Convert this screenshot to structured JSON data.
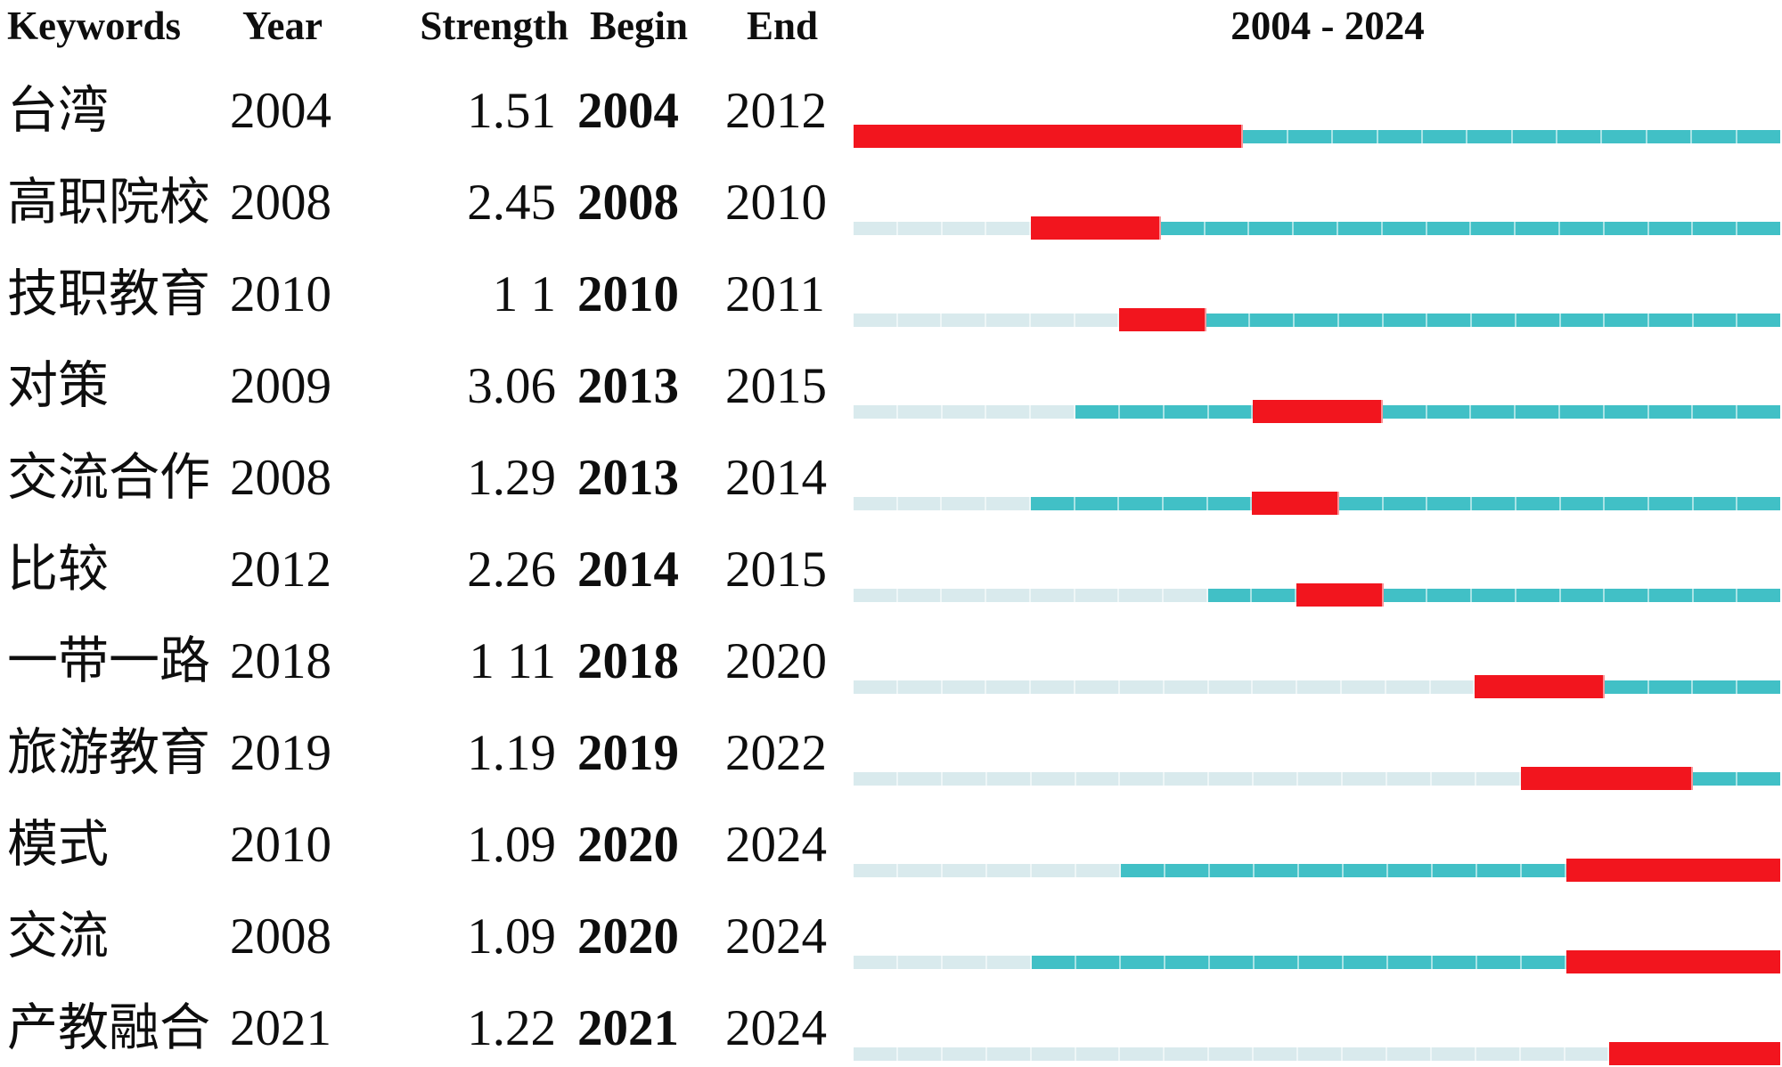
{
  "header": {
    "keywords": "Keywords",
    "year": "Year",
    "strength": "Strength",
    "begin": "Begin",
    "end": "End",
    "range": "2004 - 2024"
  },
  "timeline": {
    "start_year": 2004,
    "end_year": 2024
  },
  "colors": {
    "burst": "#f2151e",
    "active": "#41c0c6",
    "pre": "#d9eaed",
    "divider": "rgba(255,255,255,0.55)",
    "text": "#0e0e0e"
  },
  "chart_data": {
    "type": "table",
    "title": "2004 - 2024",
    "columns": [
      "Keywords",
      "Year",
      "Strength",
      "Begin",
      "End"
    ],
    "timeline_range": [
      2004,
      2024
    ],
    "legend": {
      "burst_segment": "red: burst period (Begin–End)",
      "active_segment": "teal: keyword present",
      "pre_segment": "light: before first appearance"
    },
    "rows": [
      {
        "keyword": "台湾",
        "year": 2004,
        "strength": "1.51",
        "begin": 2004,
        "end": 2012
      },
      {
        "keyword": "高职院校",
        "year": 2008,
        "strength": "2.45",
        "begin": 2008,
        "end": 2010
      },
      {
        "keyword": "技职教育",
        "year": 2010,
        "strength": "1 1",
        "begin": 2010,
        "end": 2011
      },
      {
        "keyword": "对策",
        "year": 2009,
        "strength": "3.06",
        "begin": 2013,
        "end": 2015
      },
      {
        "keyword": "交流合作",
        "year": 2008,
        "strength": "1.29",
        "begin": 2013,
        "end": 2014
      },
      {
        "keyword": "比较",
        "year": 2012,
        "strength": "2.26",
        "begin": 2014,
        "end": 2015
      },
      {
        "keyword": "一带一路",
        "year": 2018,
        "strength": "1 11",
        "begin": 2018,
        "end": 2020
      },
      {
        "keyword": "旅游教育",
        "year": 2019,
        "strength": "1.19",
        "begin": 2019,
        "end": 2022
      },
      {
        "keyword": "模式",
        "year": 2010,
        "strength": "1.09",
        "begin": 2020,
        "end": 2024
      },
      {
        "keyword": "交流",
        "year": 2008,
        "strength": "1.09",
        "begin": 2020,
        "end": 2024
      },
      {
        "keyword": "产教融合",
        "year": 2021,
        "strength": "1.22",
        "begin": 2021,
        "end": 2024
      }
    ]
  }
}
